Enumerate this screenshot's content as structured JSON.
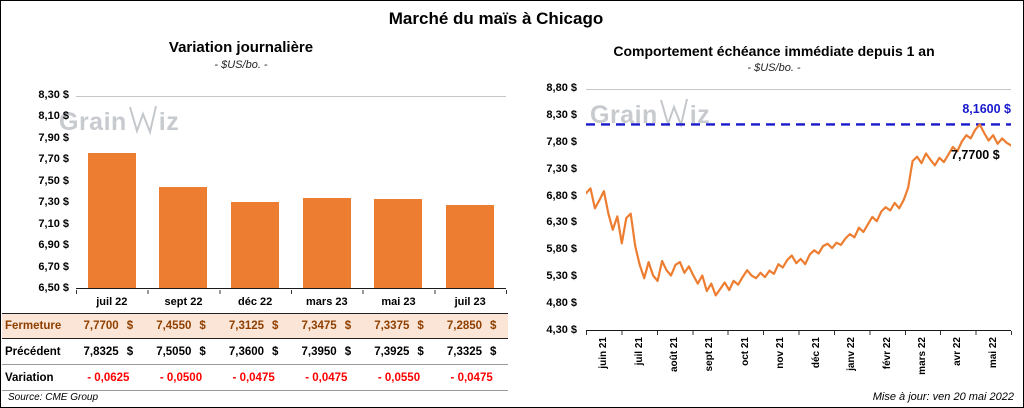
{
  "page": {
    "title": "Marché du maïs à Chicago",
    "source": "Source: CME Group",
    "updated": "Mise à jour: ven 20 mai 2022"
  },
  "watermark": {
    "prefix": "Grain",
    "suffix": "iz"
  },
  "colors": {
    "accent_orange": "#ED7D31",
    "reference_blue": "#1818CC",
    "fermeture_bg": "#FBE5D6",
    "fermeture_text": "#8F3F00",
    "negative_red": "#FF0000"
  },
  "chart_data": [
    {
      "type": "bar",
      "title": "Variation journalière",
      "subtitle": "- $US/bo. -",
      "categories": [
        "juil 22",
        "sept 22",
        "déc 22",
        "mars 23",
        "mai 23",
        "juil 23"
      ],
      "values": [
        7.77,
        7.455,
        7.3125,
        7.3475,
        7.3375,
        7.285
      ],
      "ylim": [
        6.5,
        8.3
      ],
      "yticks": [
        "8,30 $",
        "8,10 $",
        "7,90 $",
        "7,70 $",
        "7,50 $",
        "7,30 $",
        "7,10 $",
        "6,90 $",
        "6,70 $",
        "6,50 $"
      ],
      "grid": false,
      "table": [
        {
          "label": "Fermeture",
          "style": "fermeture",
          "unit": "$",
          "values": [
            "7,7700",
            "7,4550",
            "7,3125",
            "7,3475",
            "7,3375",
            "7,2850"
          ]
        },
        {
          "label": "Précédent",
          "style": "precedent",
          "unit": "$",
          "values": [
            "7,8325",
            "7,5050",
            "7,3600",
            "7,3950",
            "7,3925",
            "7,3325"
          ]
        },
        {
          "label": "Variation",
          "style": "variation",
          "unit": "",
          "values": [
            "- 0,0625",
            "- 0,0500",
            "- 0,0475",
            "- 0,0475",
            "- 0,0550",
            "- 0,0475"
          ]
        }
      ]
    },
    {
      "type": "line",
      "title": "Comportement échéance immédiate depuis 1 an",
      "subtitle": "- $US/bo. -",
      "x_labels": [
        "juin 21",
        "juil 21",
        "août 21",
        "sept 21",
        "oct 21",
        "nov 21",
        "déc 21",
        "janv 22",
        "févr 22",
        "mars 22",
        "avr 22",
        "mai 22"
      ],
      "ylim": [
        4.3,
        8.8
      ],
      "yticks": [
        "8,80 $",
        "8,30 $",
        "7,80 $",
        "7,30 $",
        "6,80 $",
        "6,30 $",
        "5,80 $",
        "5,30 $",
        "4,80 $",
        "4,30 $"
      ],
      "reference_line": {
        "value": 8.16,
        "label": "8,1600 $"
      },
      "last_value_label": "7,7700 $",
      "grid": false,
      "values": [
        6.88,
        6.97,
        6.6,
        6.75,
        6.92,
        6.5,
        6.2,
        6.45,
        5.95,
        6.42,
        6.5,
        5.9,
        5.55,
        5.3,
        5.6,
        5.35,
        5.25,
        5.62,
        5.45,
        5.35,
        5.55,
        5.6,
        5.4,
        5.52,
        5.35,
        5.2,
        5.35,
        5.06,
        5.2,
        4.98,
        5.1,
        5.22,
        5.08,
        5.25,
        5.18,
        5.32,
        5.45,
        5.35,
        5.3,
        5.4,
        5.32,
        5.44,
        5.38,
        5.56,
        5.5,
        5.64,
        5.72,
        5.58,
        5.66,
        5.56,
        5.74,
        5.82,
        5.76,
        5.9,
        5.94,
        5.86,
        5.96,
        5.92,
        6.04,
        6.12,
        6.06,
        6.24,
        6.16,
        6.3,
        6.44,
        6.36,
        6.54,
        6.62,
        6.56,
        6.7,
        6.6,
        6.75,
        6.98,
        7.48,
        7.56,
        7.44,
        7.62,
        7.5,
        7.4,
        7.54,
        7.46,
        7.6,
        7.74,
        7.66,
        7.84,
        7.96,
        7.9,
        8.06,
        8.16,
        8.0,
        7.86,
        7.96,
        7.8,
        7.9,
        7.82,
        7.77
      ]
    }
  ]
}
